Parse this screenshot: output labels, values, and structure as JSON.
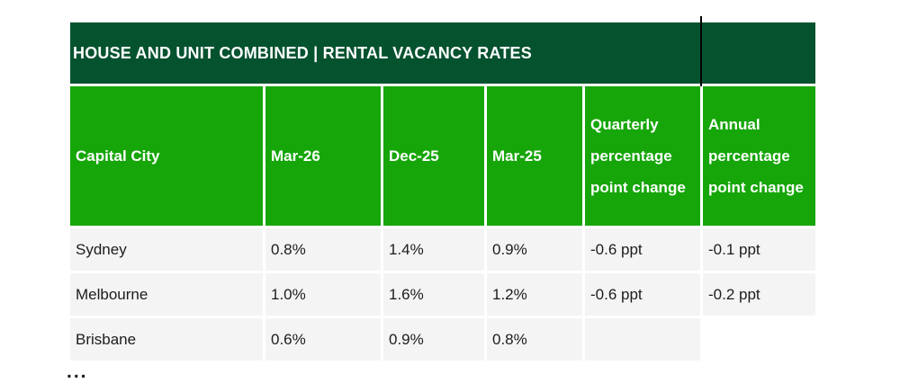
{
  "chart_data": {
    "type": "table",
    "title": "HOUSE AND UNIT COMBINED | RENTAL VACANCY RATES",
    "columns": [
      "Capital City",
      "Mar-26",
      "Dec-25",
      "Mar-25",
      "Quarterly percentage point change",
      "Annual percentage point change"
    ],
    "rows": [
      [
        "Sydney",
        "0.8%",
        "1.4%",
        "0.9%",
        "-0.6 ppt",
        "-0.1 ppt"
      ],
      [
        "Melbourne",
        "1.0%",
        "1.6%",
        "1.2%",
        "-0.6 ppt",
        "-0.2 ppt"
      ],
      [
        "Brisbane",
        "0.6%",
        "0.9%",
        "0.8%",
        "",
        ""
      ]
    ],
    "layout_hints": {
      "title_bar_position": "top, full width, left-aligned text",
      "header_row": "green background, white bold text, tall cells with wrapped text",
      "body_rows": "light gray cells separated by white gaps",
      "truncated": true
    }
  },
  "truncation_ellipsis": "...",
  "colors": {
    "title_bar_green": "#05522f",
    "header_green": "#16a60a",
    "row_gray": "#f4f4f5",
    "body_text": "#1c1c1c",
    "header_text": "#ffffff",
    "divider_line_black": "#000000",
    "background": "#ffffff"
  }
}
